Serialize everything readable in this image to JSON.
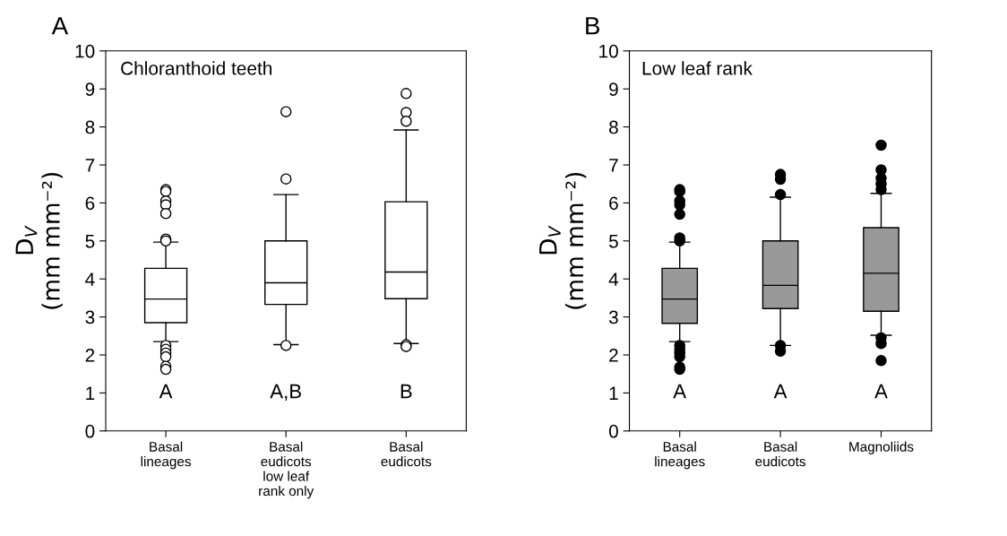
{
  "chart_data": [
    {
      "type": "box",
      "title": "A",
      "ylabel": "D$_{V}$\n(mm mm⁻²)",
      "categories": [
        "Basal\nlineages",
        "Basal\neudicots\nlow leaf\nrank only",
        "Basal\neudicots"
      ],
      "ylim": [
        0,
        10
      ],
      "yticks": [
        0,
        1,
        2,
        3,
        4,
        5,
        6,
        7,
        8,
        9,
        10
      ],
      "grid": false,
      "marker": "circle",
      "series": [
        {
          "color": "#ffffff",
          "boxes": [
            {
              "low": 2.35,
              "q1": 2.85,
              "median": 3.47,
              "q3": 4.28,
              "high": 4.97,
              "outliers": [
                6.35,
                6.3,
                6.05,
                5.95,
                5.72,
                5.05,
                5.0,
                2.25,
                2.15,
                2.05,
                1.95,
                1.7,
                1.62
              ]
            },
            {
              "low": 2.27,
              "q1": 3.33,
              "median": 3.9,
              "q3": 5.0,
              "high": 6.22,
              "outliers": [
                8.4,
                6.63,
                2.25
              ]
            },
            {
              "low": 2.3,
              "q1": 3.48,
              "median": 4.18,
              "q3": 6.03,
              "high": 7.92,
              "outliers": [
                8.88,
                8.38,
                8.15,
                2.27,
                2.22
              ]
            }
          ]
        }
      ],
      "annotations": [
        "Chloranthoid teeth",
        "A",
        "A,B",
        "B"
      ]
    },
    {
      "type": "box",
      "title": "B",
      "ylabel": "D$_{V}$\n(mm mm⁻²)",
      "categories": [
        "Basal\nlineages",
        "Basal\neudicots",
        "Magnoliids"
      ],
      "ylim": [
        0,
        10
      ],
      "yticks": [
        0,
        1,
        2,
        3,
        4,
        5,
        6,
        7,
        8,
        9,
        10
      ],
      "grid": false,
      "marker": "circle",
      "series": [
        {
          "color": "#999999",
          "boxes": [
            {
              "low": 2.35,
              "q1": 2.83,
              "median": 3.47,
              "q3": 4.28,
              "high": 4.97,
              "outliers": [
                6.35,
                6.3,
                6.05,
                5.95,
                5.7,
                5.08,
                5.0,
                2.25,
                2.15,
                2.05,
                1.95,
                1.68,
                1.62
              ]
            },
            {
              "low": 2.25,
              "q1": 3.22,
              "median": 3.83,
              "q3": 5.0,
              "high": 6.15,
              "outliers": [
                6.75,
                6.62,
                6.22,
                2.25,
                2.1
              ]
            },
            {
              "low": 2.52,
              "q1": 3.15,
              "median": 4.15,
              "q3": 5.35,
              "high": 6.25,
              "outliers": [
                7.52,
                6.87,
                6.65,
                6.5,
                6.35,
                2.45,
                2.3,
                1.85
              ]
            }
          ]
        }
      ],
      "annotations": [
        "Low leaf rank",
        "A",
        "A",
        "A"
      ]
    }
  ]
}
